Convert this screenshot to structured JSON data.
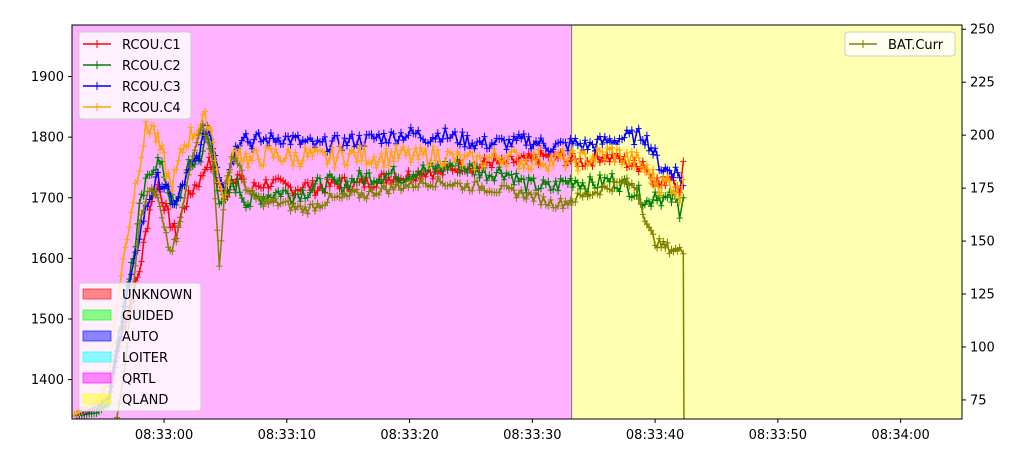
{
  "chart_data": {
    "type": "line",
    "x_unit": "time",
    "xlim": [
      "08:32:52.5",
      "08:34:05"
    ],
    "ylim_left": [
      1335,
      1985
    ],
    "ylim_right": [
      66,
      252
    ],
    "x_ticks": [
      "08:33:00",
      "08:33:10",
      "08:33:20",
      "08:33:30",
      "08:33:40",
      "08:33:50",
      "08:34:00"
    ],
    "y_ticks_left": [
      "1400",
      "1500",
      "1600",
      "1700",
      "1800",
      "1900"
    ],
    "y_ticks_right": [
      "75",
      "100",
      "125",
      "150",
      "175",
      "200",
      "225",
      "250"
    ],
    "mode_regions": [
      {
        "mode": "QRTL",
        "start": "08:32:52.5",
        "end": "08:33:33.2",
        "color": "#ff00ff"
      },
      {
        "mode": "QLAND",
        "start": "08:33:33.2",
        "end": "08:34:05",
        "color": "#ffff00"
      }
    ],
    "mode_legend": [
      {
        "label": "UNKNOWN",
        "color": "#ff0000"
      },
      {
        "label": "GUIDED",
        "color": "#00ff00"
      },
      {
        "label": "AUTO",
        "color": "#0000ff"
      },
      {
        "label": "LOITER",
        "color": "#00ffff"
      },
      {
        "label": "QRTL",
        "color": "#ff00ff"
      },
      {
        "label": "QLAND",
        "color": "#ffff00"
      }
    ],
    "series": [
      {
        "name": "RCOU.C1",
        "color": "#ff0000",
        "axis": "left",
        "t": [
          0,
          2,
          3,
          3.5,
          4,
          4.5,
          5,
          5.5,
          6,
          6.5,
          7,
          7.5,
          8,
          8.5,
          9,
          9.5,
          10,
          10.5,
          11,
          11.5,
          12,
          12.5,
          13,
          13.5,
          14,
          14.5,
          15,
          16,
          17,
          18,
          19,
          20,
          21,
          22,
          23,
          24,
          25,
          26,
          27,
          28,
          29,
          30,
          31,
          32,
          33,
          34,
          35,
          36,
          37,
          38,
          39,
          40,
          41,
          42,
          43,
          44,
          45,
          46,
          46.5,
          47,
          47.5,
          48,
          48.5,
          49,
          49.5,
          49.8
        ],
        "v": [
          1340,
          1350,
          1360,
          1420,
          1470,
          1510,
          1540,
          1580,
          1640,
          1700,
          1720,
          1690,
          1660,
          1640,
          1680,
          1700,
          1720,
          1730,
          1760,
          1750,
          1720,
          1700,
          1730,
          1740,
          1720,
          1710,
          1720,
          1725,
          1720,
          1715,
          1720,
          1715,
          1720,
          1725,
          1720,
          1725,
          1730,
          1735,
          1735,
          1740,
          1745,
          1740,
          1750,
          1755,
          1750,
          1760,
          1755,
          1760,
          1760,
          1765,
          1770,
          1765,
          1760,
          1760,
          1770,
          1765,
          1760,
          1750,
          1760,
          1740,
          1730,
          1720,
          1735,
          1740,
          1700,
          1760
        ]
      },
      {
        "name": "RCOU.C2",
        "color": "#008000",
        "axis": "left",
        "t": [
          0,
          2,
          3,
          3.5,
          4,
          4.5,
          5,
          5.5,
          6,
          6.5,
          7,
          7.5,
          8,
          8.5,
          9,
          9.5,
          10,
          10.5,
          11,
          11.5,
          12,
          12.5,
          13,
          13.5,
          14,
          14.5,
          15,
          16,
          17,
          18,
          19,
          20,
          21,
          22,
          23,
          24,
          25,
          26,
          27,
          28,
          29,
          30,
          31,
          32,
          33,
          34,
          35,
          36,
          37,
          38,
          39,
          40,
          41,
          42,
          43,
          44,
          45,
          46,
          46.5,
          47,
          47.5,
          48,
          48.5,
          49,
          49.5,
          49.8
        ],
        "v": [
          1340,
          1345,
          1360,
          1440,
          1500,
          1560,
          1600,
          1680,
          1720,
          1750,
          1760,
          1740,
          1700,
          1680,
          1720,
          1750,
          1760,
          1770,
          1800,
          1770,
          1700,
          1690,
          1720,
          1720,
          1700,
          1690,
          1700,
          1705,
          1710,
          1705,
          1710,
          1720,
          1725,
          1720,
          1730,
          1735,
          1735,
          1740,
          1735,
          1745,
          1745,
          1750,
          1755,
          1750,
          1745,
          1740,
          1745,
          1735,
          1720,
          1720,
          1715,
          1725,
          1730,
          1720,
          1725,
          1730,
          1720,
          1710,
          1700,
          1690,
          1710,
          1700,
          1695,
          1700,
          1680,
          1700
        ]
      },
      {
        "name": "RCOU.C3",
        "color": "#0000ff",
        "axis": "left",
        "t": [
          0,
          2,
          3,
          3.5,
          4,
          4.5,
          5,
          5.5,
          6,
          6.5,
          7,
          7.5,
          8,
          8.5,
          9,
          9.5,
          10,
          10.5,
          11,
          11.5,
          12,
          12.5,
          13,
          13.5,
          14,
          14.5,
          15,
          16,
          17,
          18,
          19,
          20,
          21,
          22,
          23,
          24,
          25,
          26,
          27,
          28,
          29,
          30,
          31,
          32,
          33,
          34,
          35,
          36,
          37,
          38,
          39,
          40,
          41,
          42,
          43,
          44,
          45,
          46,
          46.5,
          47,
          47.5,
          48,
          48.5,
          49,
          49.5,
          49.8
        ],
        "v": [
          1340,
          1355,
          1370,
          1430,
          1480,
          1540,
          1580,
          1640,
          1680,
          1710,
          1730,
          1720,
          1700,
          1690,
          1720,
          1740,
          1760,
          1780,
          1820,
          1790,
          1740,
          1720,
          1760,
          1790,
          1810,
          1790,
          1795,
          1795,
          1800,
          1795,
          1790,
          1785,
          1790,
          1790,
          1795,
          1795,
          1800,
          1800,
          1805,
          1805,
          1800,
          1805,
          1800,
          1795,
          1790,
          1790,
          1790,
          1790,
          1795,
          1790,
          1785,
          1785,
          1790,
          1785,
          1790,
          1795,
          1800,
          1800,
          1805,
          1790,
          1770,
          1750,
          1745,
          1745,
          1740,
          1720
        ]
      },
      {
        "name": "RCOU.C4",
        "color": "#ffa500",
        "axis": "left",
        "t": [
          0,
          2,
          3,
          3.5,
          4,
          4.5,
          5,
          5.5,
          6,
          6.5,
          7,
          7.5,
          8,
          8.5,
          9,
          9.5,
          10,
          10.5,
          11,
          11.5,
          12,
          12.5,
          13,
          13.5,
          14,
          14.5,
          15,
          16,
          17,
          18,
          19,
          20,
          21,
          22,
          23,
          24,
          25,
          26,
          27,
          28,
          29,
          30,
          31,
          32,
          33,
          34,
          35,
          36,
          37,
          38,
          39,
          40,
          41,
          42,
          43,
          44,
          45,
          46,
          46.5,
          47,
          47.5,
          48,
          48.5,
          49,
          49.5,
          49.8
        ],
        "v": [
          1340,
          1360,
          1400,
          1500,
          1570,
          1640,
          1700,
          1760,
          1810,
          1820,
          1790,
          1760,
          1720,
          1740,
          1780,
          1800,
          1810,
          1820,
          1830,
          1800,
          1720,
          1700,
          1760,
          1780,
          1770,
          1760,
          1765,
          1770,
          1770,
          1765,
          1770,
          1765,
          1765,
          1770,
          1770,
          1770,
          1765,
          1770,
          1770,
          1765,
          1770,
          1770,
          1765,
          1760,
          1760,
          1765,
          1770,
          1765,
          1760,
          1765,
          1760,
          1765,
          1760,
          1765,
          1770,
          1775,
          1765,
          1760,
          1750,
          1740,
          1730,
          1720,
          1725,
          1720,
          1700,
          1730
        ]
      },
      {
        "name": "BAT.Curr",
        "color": "#808000",
        "axis": "right",
        "t": [
          0,
          2,
          3,
          3.5,
          4,
          4.5,
          5,
          5.5,
          6,
          6.5,
          7,
          7.5,
          8,
          8.5,
          9,
          9.5,
          10,
          10.5,
          11,
          11.5,
          12,
          12.5,
          13,
          13.5,
          14,
          14.5,
          15,
          16,
          17,
          18,
          19,
          20,
          21,
          22,
          23,
          24,
          25,
          26,
          27,
          28,
          29,
          30,
          31,
          32,
          33,
          34,
          35,
          36,
          37,
          38,
          39,
          40,
          41,
          42,
          43,
          44,
          45,
          46,
          46.5,
          47,
          47.5,
          48,
          48.5,
          49,
          49.5,
          49.8,
          49.85
        ],
        "v": [
          60,
          60,
          60,
          60,
          80,
          100,
          130,
          160,
          170,
          175,
          170,
          155,
          145,
          150,
          165,
          180,
          195,
          205,
          200,
          185,
          140,
          175,
          190,
          188,
          178,
          172,
          170,
          168,
          168,
          166,
          165,
          167,
          170,
          170,
          172,
          172,
          174,
          175,
          176,
          177,
          178,
          178,
          177,
          176,
          176,
          175,
          174,
          173,
          172,
          170,
          168,
          168,
          170,
          172,
          174,
          176,
          178,
          175,
          165,
          155,
          150,
          148,
          147,
          146,
          145,
          145,
          60
        ]
      }
    ]
  }
}
